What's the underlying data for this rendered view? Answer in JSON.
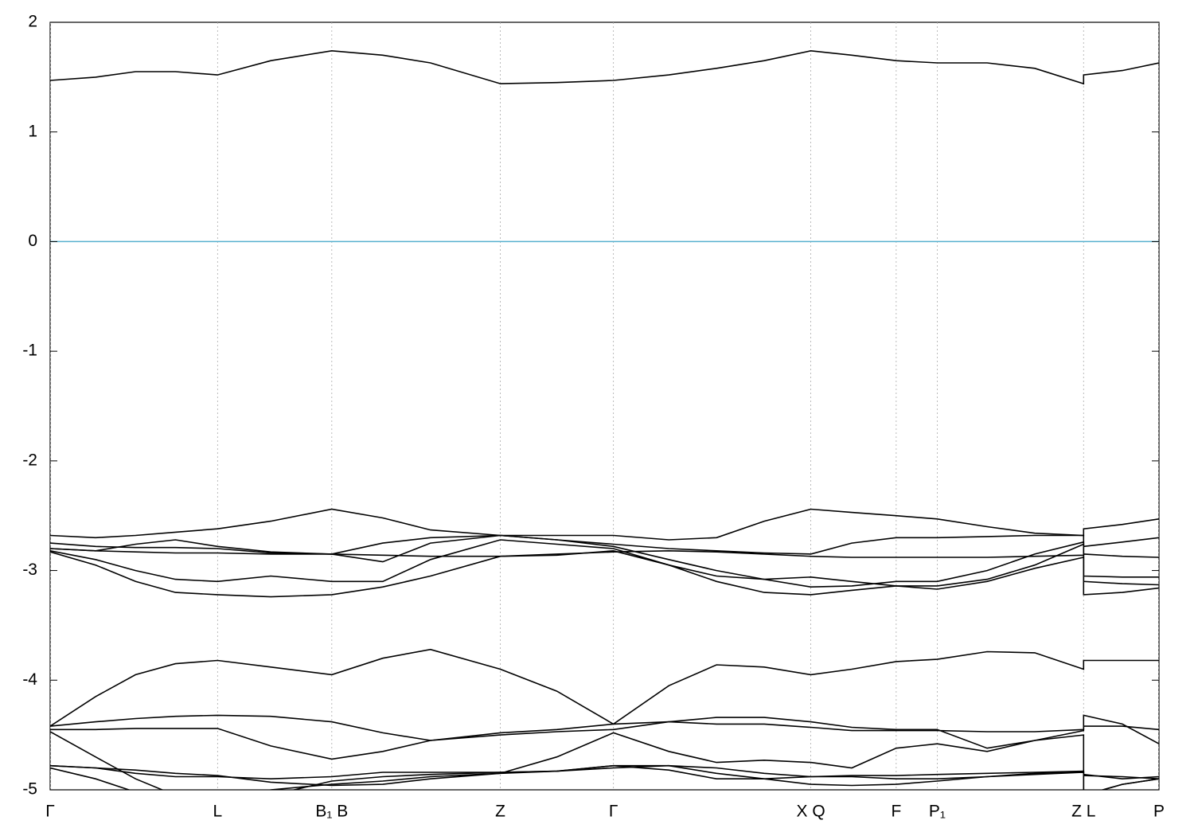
{
  "chart_data": {
    "type": "line",
    "x": [
      0,
      0.041,
      0.077,
      0.113,
      0.151,
      0.199,
      0.254,
      0.3,
      0.343,
      0.406,
      0.457,
      0.508,
      0.558,
      0.601,
      0.644,
      0.686,
      0.723,
      0.763,
      0.8,
      0.845,
      0.888,
      0.932,
      0.932,
      0.967,
      1
    ],
    "xlim": [
      0,
      1
    ],
    "xticks": [
      {
        "value": 0,
        "label": "Γ"
      },
      {
        "value": 0.151,
        "label": "L"
      },
      {
        "value": 0.254,
        "label": "B₁ B"
      },
      {
        "value": 0.406,
        "label": "Z"
      },
      {
        "value": 0.508,
        "label": "Γ"
      },
      {
        "value": 0.686,
        "label": "X Q"
      },
      {
        "value": 0.763,
        "label": "F"
      },
      {
        "value": 0.8,
        "label": "P₁"
      },
      {
        "value": 0.932,
        "label": "Z L"
      },
      {
        "value": 1,
        "label": "P"
      }
    ],
    "ylim": [
      -5,
      2
    ],
    "yticks": [
      -5,
      -4,
      -3,
      -2,
      -1,
      0,
      1,
      2
    ],
    "grid": true,
    "fermi_level": 0,
    "fermi_color": "#56b0cf",
    "series": [
      {
        "color": "#000000",
        "values": [
          1.47,
          1.5,
          1.55,
          1.55,
          1.52,
          1.65,
          1.74,
          1.7,
          1.63,
          1.44,
          1.45,
          1.47,
          1.52,
          1.58,
          1.65,
          1.74,
          1.7,
          1.65,
          1.63,
          1.63,
          1.58,
          1.44,
          1.52,
          1.56,
          1.63
        ]
      },
      {
        "color": "#000000",
        "values": [
          -2.68,
          -2.7,
          -2.68,
          -2.65,
          -2.62,
          -2.55,
          -2.44,
          -2.52,
          -2.63,
          -2.68,
          -2.68,
          -2.68,
          -2.72,
          -2.7,
          -2.55,
          -2.44,
          -2.47,
          -2.5,
          -2.53,
          -2.6,
          -2.66,
          -2.68,
          -2.62,
          -2.58,
          -2.53
        ]
      },
      {
        "color": "#000000",
        "values": [
          -2.75,
          -2.78,
          -2.79,
          -2.79,
          -2.8,
          -2.84,
          -2.85,
          -2.75,
          -2.7,
          -2.68,
          -2.72,
          -2.76,
          -2.8,
          -2.82,
          -2.84,
          -2.85,
          -2.75,
          -2.7,
          -2.7,
          -2.69,
          -2.68,
          -2.68,
          -2.78,
          -2.74,
          -2.7
        ]
      },
      {
        "color": "#000000",
        "values": [
          -2.8,
          -2.82,
          -2.83,
          -2.84,
          -2.84,
          -2.85,
          -2.85,
          -2.86,
          -2.87,
          -2.87,
          -2.85,
          -2.83,
          -2.82,
          -2.83,
          -2.85,
          -2.87,
          -2.88,
          -2.88,
          -2.88,
          -2.88,
          -2.87,
          -2.86,
          -2.85,
          -2.87,
          -2.88
        ]
      },
      {
        "color": "#000000",
        "values": [
          -2.8,
          -2.82,
          -2.76,
          -2.72,
          -2.78,
          -2.83,
          -2.85,
          -2.92,
          -2.75,
          -2.68,
          -2.72,
          -2.78,
          -2.9,
          -3.0,
          -3.08,
          -3.15,
          -3.14,
          -3.1,
          -3.1,
          -3.0,
          -2.85,
          -2.74,
          -3.05,
          -3.06,
          -3.06
        ]
      },
      {
        "color": "#000000",
        "values": [
          -2.82,
          -2.9,
          -3.0,
          -3.08,
          -3.1,
          -3.05,
          -3.1,
          -3.1,
          -2.9,
          -2.72,
          -2.76,
          -2.8,
          -2.95,
          -3.05,
          -3.08,
          -3.06,
          -3.1,
          -3.14,
          -3.14,
          -3.08,
          -2.95,
          -2.76,
          -3.1,
          -3.12,
          -3.13
        ]
      },
      {
        "color": "#000000",
        "values": [
          -2.83,
          -2.95,
          -3.1,
          -3.2,
          -3.22,
          -3.24,
          -3.22,
          -3.15,
          -3.05,
          -2.87,
          -2.86,
          -2.82,
          -2.95,
          -3.1,
          -3.2,
          -3.22,
          -3.18,
          -3.14,
          -3.17,
          -3.1,
          -2.98,
          -2.88,
          -3.22,
          -3.2,
          -3.16
        ]
      },
      {
        "color": "#000000",
        "values": [
          -4.42,
          -4.15,
          -3.95,
          -3.85,
          -3.82,
          -3.88,
          -3.95,
          -3.8,
          -3.72,
          -3.9,
          -4.1,
          -4.4,
          -4.05,
          -3.86,
          -3.88,
          -3.95,
          -3.9,
          -3.83,
          -3.81,
          -3.74,
          -3.75,
          -3.9,
          -3.82,
          -3.82,
          -3.82
        ]
      },
      {
        "color": "#000000",
        "values": [
          -4.42,
          -4.38,
          -4.35,
          -4.33,
          -4.32,
          -4.33,
          -4.38,
          -4.48,
          -4.55,
          -4.5,
          -4.47,
          -4.45,
          -4.38,
          -4.34,
          -4.34,
          -4.38,
          -4.43,
          -4.45,
          -4.45,
          -4.62,
          -4.55,
          -4.46,
          -4.32,
          -4.4,
          -4.58
        ]
      },
      {
        "color": "#000000",
        "values": [
          -4.45,
          -4.45,
          -4.44,
          -4.44,
          -4.44,
          -4.6,
          -4.72,
          -4.65,
          -4.55,
          -4.48,
          -4.45,
          -4.4,
          -4.38,
          -4.4,
          -4.4,
          -4.43,
          -4.46,
          -4.46,
          -4.46,
          -4.47,
          -4.47,
          -4.45,
          -4.42,
          -4.42,
          -4.45
        ]
      },
      {
        "color": "#000000",
        "values": [
          -4.47,
          -4.7,
          -4.9,
          -5.05,
          -5.12,
          -5.05,
          -4.92,
          -4.88,
          -4.86,
          -4.84,
          -4.83,
          -4.8,
          -4.78,
          -4.8,
          -4.85,
          -4.88,
          -4.88,
          -4.9,
          -4.9,
          -4.88,
          -4.86,
          -4.84,
          -4.87,
          -4.88,
          -4.9
        ]
      },
      {
        "color": "#000000",
        "values": [
          -4.78,
          -4.8,
          -4.85,
          -4.88,
          -4.88,
          -4.9,
          -4.88,
          -4.84,
          -4.84,
          -4.84,
          -4.83,
          -4.78,
          -4.78,
          -4.85,
          -4.9,
          -4.95,
          -4.96,
          -4.95,
          -4.92,
          -4.88,
          -4.85,
          -4.84,
          -4.86,
          -4.9,
          -4.88
        ]
      },
      {
        "color": "#000000",
        "values": [
          -4.78,
          -4.8,
          -4.82,
          -4.85,
          -4.87,
          -4.93,
          -4.96,
          -4.95,
          -4.9,
          -4.85,
          -4.7,
          -4.48,
          -4.65,
          -4.75,
          -4.73,
          -4.75,
          -4.8,
          -4.62,
          -4.58,
          -4.65,
          -4.55,
          -4.5,
          -5.05,
          -4.95,
          -4.9
        ]
      },
      {
        "color": "#000000",
        "values": [
          -4.8,
          -4.9,
          -5.02,
          -5.1,
          -5.15,
          -5.0,
          -4.95,
          -4.92,
          -4.88,
          -4.85,
          -4.83,
          -4.78,
          -4.82,
          -4.9,
          -4.9,
          -4.88,
          -4.87,
          -4.87,
          -4.86,
          -4.85,
          -4.84,
          -4.83,
          -5.05,
          -4.95,
          -4.9
        ]
      }
    ]
  }
}
